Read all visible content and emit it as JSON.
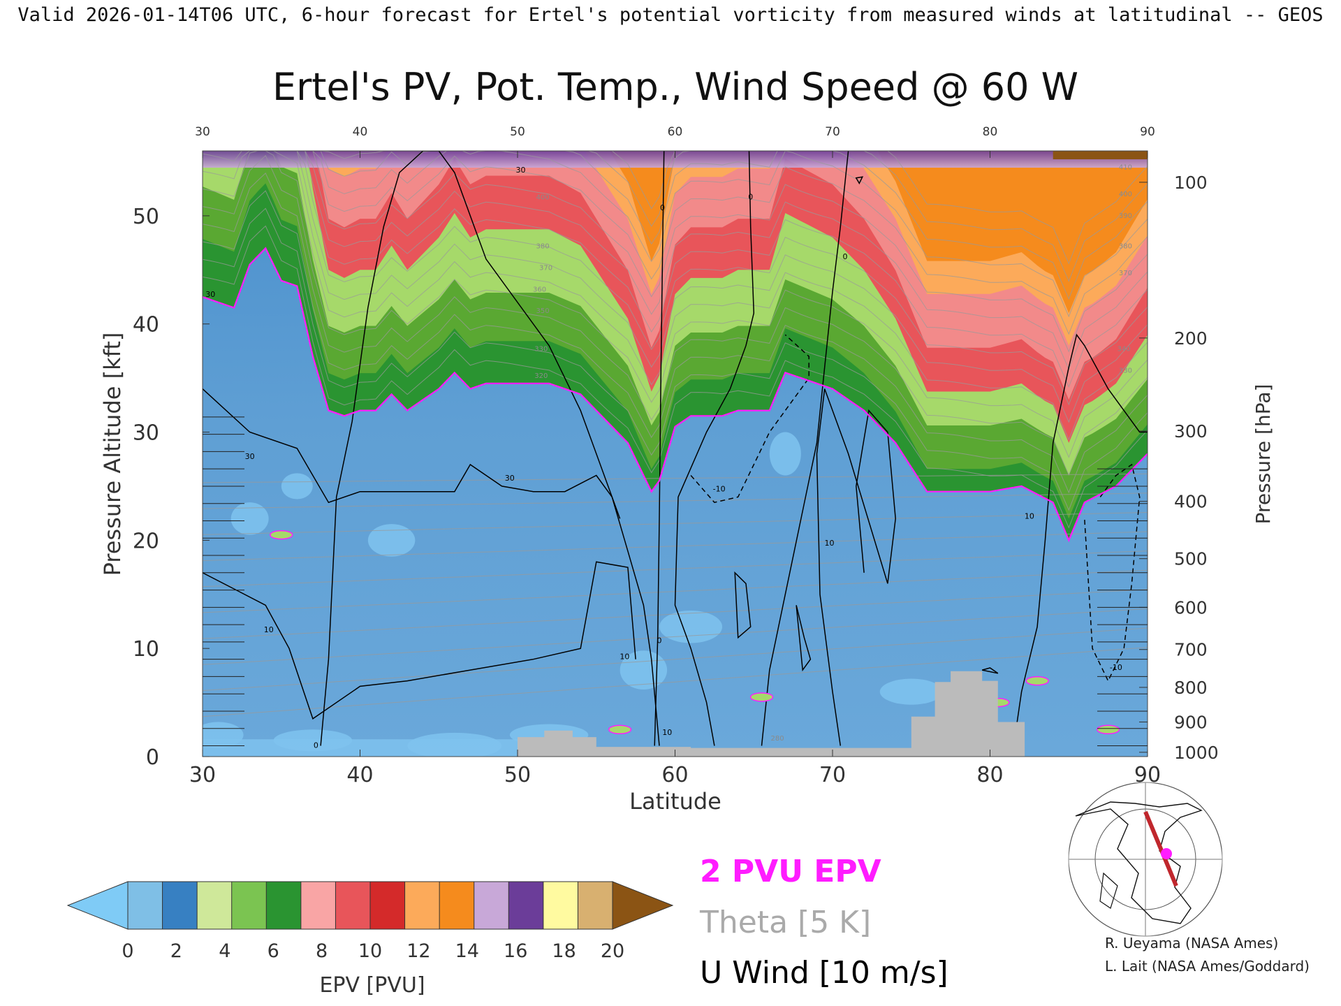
{
  "header": {
    "caption": "Valid 2026-01-14T06 UTC, 6-hour forecast for Ertel's potential vorticity from measured winds at latitudinal -- GEOS"
  },
  "chart_data": {
    "type": "heatmap",
    "title": "Ertel's PV, Pot. Temp., Wind Speed @ 60 W",
    "xlabel": "Latitude",
    "ylabel": "Pressure Altitude [kft]",
    "ylabel_right": "Pressure [hPa]",
    "xlim": [
      30,
      90
    ],
    "ylim": [
      0,
      56
    ],
    "x_ticks": [
      "30",
      "40",
      "50",
      "60",
      "70",
      "80",
      "90"
    ],
    "y_ticks": [
      "0",
      "10",
      "20",
      "30",
      "40",
      "50"
    ],
    "pressure_ticks": [
      {
        "label": "100",
        "kft": 53.1
      },
      {
        "label": "200",
        "kft": 38.7
      },
      {
        "label": "300",
        "kft": 30.1
      },
      {
        "label": "400",
        "kft": 23.6
      },
      {
        "label": "500",
        "kft": 18.3
      },
      {
        "label": "600",
        "kft": 13.8
      },
      {
        "label": "700",
        "kft": 9.9
      },
      {
        "label": "800",
        "kft": 6.4
      },
      {
        "label": "900",
        "kft": 3.2
      },
      {
        "label": "1000",
        "kft": 0.4
      }
    ],
    "tropopause_2pvu": {
      "lat": [
        30,
        31,
        32,
        33,
        34,
        35,
        36,
        37,
        38,
        39,
        40,
        41,
        42,
        43,
        44,
        45,
        46,
        47,
        48,
        50,
        52,
        54,
        55,
        56,
        57,
        58,
        58.5,
        59,
        60,
        61,
        62,
        63,
        64,
        65,
        66,
        67,
        68,
        70,
        72,
        74,
        76,
        78,
        80,
        82,
        84,
        85,
        86,
        88,
        90
      ],
      "kft": [
        42.5,
        42.0,
        41.5,
        45.5,
        47.0,
        44.0,
        43.5,
        37.0,
        32.0,
        31.5,
        32.0,
        32.0,
        33.5,
        32.0,
        33.0,
        34.0,
        35.5,
        34.0,
        34.5,
        34.5,
        34.5,
        33.5,
        32.0,
        30.5,
        29.0,
        26.0,
        24.5,
        25.5,
        30.5,
        31.5,
        31.5,
        31.5,
        32.0,
        32.0,
        32.0,
        35.5,
        35.0,
        34.0,
        32.0,
        29.0,
        24.5,
        24.5,
        24.5,
        25.0,
        23.5,
        20.0,
        23.5,
        25.0,
        28.0
      ]
    },
    "epv_bands": [
      {
        "base": 2,
        "top": 6,
        "color": "#5aa832"
      },
      {
        "base": 6,
        "top": 11,
        "color": "#a6d96a"
      },
      {
        "base": 9,
        "top": 20,
        "color": "#e8555a"
      },
      {
        "base": 13,
        "top": 26,
        "color": "#f28a8a"
      },
      {
        "base": 18,
        "top": 30,
        "color": "#fcaa5a"
      },
      {
        "base": 21,
        "top": 35,
        "color": "#f58b1d"
      }
    ],
    "terrain": {
      "lat": [
        50,
        51,
        51.7,
        51.7,
        53.5,
        53.5,
        55,
        55,
        61,
        61,
        75,
        75,
        76.5,
        76.5,
        77.5,
        77.5,
        79.5,
        79.5,
        80.5,
        80.5,
        82.2,
        82.2
      ],
      "kft": [
        1.8,
        1.8,
        1.8,
        2.4,
        2.4,
        1.8,
        1.8,
        0.9,
        0.9,
        0.8,
        0.8,
        3.7,
        3.7,
        6.9,
        6.9,
        7.9,
        7.9,
        7.0,
        7.0,
        3.2,
        3.2,
        0
      ]
    },
    "wind_contours": [
      {
        "label": "30",
        "lat": [
          30,
          33,
          36,
          38,
          40,
          43,
          46,
          47,
          49,
          51,
          53,
          55,
          56,
          56.5
        ],
        "kft": [
          34,
          30,
          28.5,
          23.5,
          24.5,
          24.5,
          24.5,
          27,
          25,
          24.5,
          24.5,
          26,
          24,
          22
        ]
      },
      {
        "label": "10",
        "lat": [
          30,
          32,
          34,
          35.5,
          37,
          40,
          43,
          47,
          51,
          54,
          55,
          57,
          57.5
        ],
        "kft": [
          17,
          15.5,
          14,
          10,
          3.5,
          6.5,
          7,
          8,
          9,
          10,
          18,
          17.5,
          9
        ]
      },
      {
        "label": "0",
        "lat": [
          37.5,
          38,
          38.5,
          39.5,
          40.5,
          41.5,
          42.5,
          44,
          45,
          46,
          47,
          48,
          50,
          52,
          53,
          54,
          55,
          56,
          57,
          58,
          58.5,
          59
        ],
        "kft": [
          1,
          9,
          24,
          31,
          41.5,
          49,
          54,
          56,
          56,
          54,
          50,
          46,
          42,
          38,
          35,
          32,
          28,
          24,
          19,
          14,
          9,
          1
        ]
      },
      {
        "label": "0",
        "lat": [
          58.7,
          58.9,
          59,
          59.1,
          59.2,
          59.3
        ],
        "kft": [
          1,
          11,
          22,
          35,
          46,
          56
        ]
      },
      {
        "label": "0",
        "lat": [
          62.5,
          62,
          61,
          60,
          60.2,
          62,
          63.5,
          64.5,
          65,
          64.8,
          64.7
        ],
        "kft": [
          1,
          5,
          10,
          14,
          24,
          30,
          34,
          38,
          41,
          49,
          56
        ]
      },
      {
        "label": "0",
        "lat": [
          65.5,
          66,
          67,
          68,
          69,
          69.5,
          70,
          70.5,
          71
        ],
        "kft": [
          1,
          8,
          15,
          22,
          29,
          36,
          43,
          49,
          56
        ]
      },
      {
        "label": "10",
        "lat": [
          72,
          71.5,
          72.3,
          73.5,
          74,
          73.5,
          71,
          69.5,
          69,
          69.2,
          70,
          70.5
        ],
        "kft": [
          17,
          25,
          32,
          30,
          22,
          16,
          28,
          34,
          28,
          15,
          6,
          1
        ]
      },
      {
        "label": "10",
        "lat": [
          81.5,
          82,
          83,
          83.5,
          84,
          85,
          85.5,
          86,
          87.5,
          89.5,
          90
        ],
        "kft": [
          1,
          6,
          12,
          20,
          29,
          36,
          39,
          38,
          34,
          30,
          30
        ]
      },
      {
        "label": "-10",
        "lat": [
          61,
          62.5,
          64,
          65,
          66,
          67.5,
          68.5,
          68.5,
          67
        ],
        "kft": [
          26,
          23.5,
          24,
          27,
          30,
          33,
          35,
          37,
          39
        ]
      },
      {
        "label": "-10",
        "lat": [
          87,
          88,
          89,
          89.5,
          89,
          88.5,
          87.5,
          86.5,
          86
        ],
        "kft": [
          24,
          26,
          27,
          24,
          16,
          10,
          7,
          10,
          22
        ]
      }
    ],
    "small_contours": [
      {
        "lat": [
          63.8,
          64.5,
          64.8,
          64,
          63.8
        ],
        "kft": [
          17,
          16,
          12,
          11,
          17
        ]
      },
      {
        "lat": [
          67.7,
          68.2,
          68.6,
          68.1,
          67.7
        ],
        "kft": [
          14,
          11,
          9,
          8,
          14
        ]
      },
      {
        "lat": [
          71.5,
          71.7,
          71.9,
          71.5
        ],
        "kft": [
          53.5,
          53,
          53.6,
          53.5
        ]
      },
      {
        "lat": [
          79.5,
          80,
          80.5,
          79.5
        ],
        "kft": [
          8,
          8.2,
          7.7,
          8
        ]
      }
    ],
    "contour_labels": [
      {
        "text": "30",
        "lat": 33.0,
        "kft": 27.5
      },
      {
        "text": "30",
        "lat": 30.5,
        "kft": 42.5
      },
      {
        "text": "30",
        "lat": 49.5,
        "kft": 25.5
      },
      {
        "text": "30",
        "lat": 50.2,
        "kft": 54.0
      },
      {
        "text": "10",
        "lat": 34.2,
        "kft": 11.5
      },
      {
        "text": "10",
        "lat": 56.8,
        "kft": 9.0
      },
      {
        "text": "10",
        "lat": 69.8,
        "kft": 19.5
      },
      {
        "text": "10",
        "lat": 82.5,
        "kft": 22.0
      },
      {
        "text": "10",
        "lat": 59.5,
        "kft": 2.0
      },
      {
        "text": "-10",
        "lat": 62.8,
        "kft": 24.5
      },
      {
        "text": "-10",
        "lat": 88.0,
        "kft": 8.0
      },
      {
        "text": "0",
        "lat": 59.0,
        "kft": 10.5
      },
      {
        "text": "0",
        "lat": 59.2,
        "kft": 50.5
      },
      {
        "text": "0",
        "lat": 64.8,
        "kft": 51.5
      },
      {
        "text": "0",
        "lat": 70.8,
        "kft": 46.0
      },
      {
        "text": "0",
        "lat": 37.2,
        "kft": 0.8
      }
    ],
    "theta_labels": [
      {
        "text": "410",
        "lat": 88.6,
        "kft": 54.3
      },
      {
        "text": "400",
        "lat": 88.6,
        "kft": 51.8
      },
      {
        "text": "390",
        "lat": 88.6,
        "kft": 49.8
      },
      {
        "text": "380",
        "lat": 88.6,
        "kft": 47.0
      },
      {
        "text": "370",
        "lat": 88.6,
        "kft": 44.5
      },
      {
        "text": "400",
        "lat": 51.6,
        "kft": 51.5
      },
      {
        "text": "380",
        "lat": 51.6,
        "kft": 47.0
      },
      {
        "text": "370",
        "lat": 51.8,
        "kft": 45.0
      },
      {
        "text": "360",
        "lat": 51.4,
        "kft": 43.0
      },
      {
        "text": "350",
        "lat": 51.6,
        "kft": 41.0
      },
      {
        "text": "340",
        "lat": 88.5,
        "kft": 37.5
      },
      {
        "text": "330",
        "lat": 88.6,
        "kft": 35.5
      },
      {
        "text": "330",
        "lat": 51.5,
        "kft": 37.5
      },
      {
        "text": "320",
        "lat": 51.5,
        "kft": 35.0
      },
      {
        "text": "280",
        "lat": 66.5,
        "kft": 1.5
      }
    ],
    "colorbar": {
      "label": "EPV [PVU]",
      "ticks": [
        "0",
        "2",
        "4",
        "6",
        "8",
        "10",
        "12",
        "14",
        "16",
        "18",
        "20"
      ],
      "low_color": "#7fcbf6",
      "high_color": "#8b5414",
      "colors": [
        "#7fbfe6",
        "#3780c2",
        "#cfe89a",
        "#7bc451",
        "#2a9431",
        "#f9a5a5",
        "#e8555a",
        "#d42a2a",
        "#fcaa5a",
        "#f58b1d",
        "#c8a8d8",
        "#6b3d99",
        "#fffaa0",
        "#d8b070"
      ]
    },
    "legend": {
      "pv": "2 PVU EPV",
      "theta": "Theta [5 K]",
      "wind": "U Wind [10 m/s]",
      "pv_color": "#ff1cff",
      "theta_color": "#aaaaaa",
      "wind_color": "#000000"
    }
  },
  "credits": {
    "line1": "R. Ueyama (NASA Ames)",
    "line2": "L. Lait (NASA Ames/Goddard)"
  },
  "inset_map": {
    "track_color": "#c0272d",
    "marker_color": "#ff1cff"
  }
}
